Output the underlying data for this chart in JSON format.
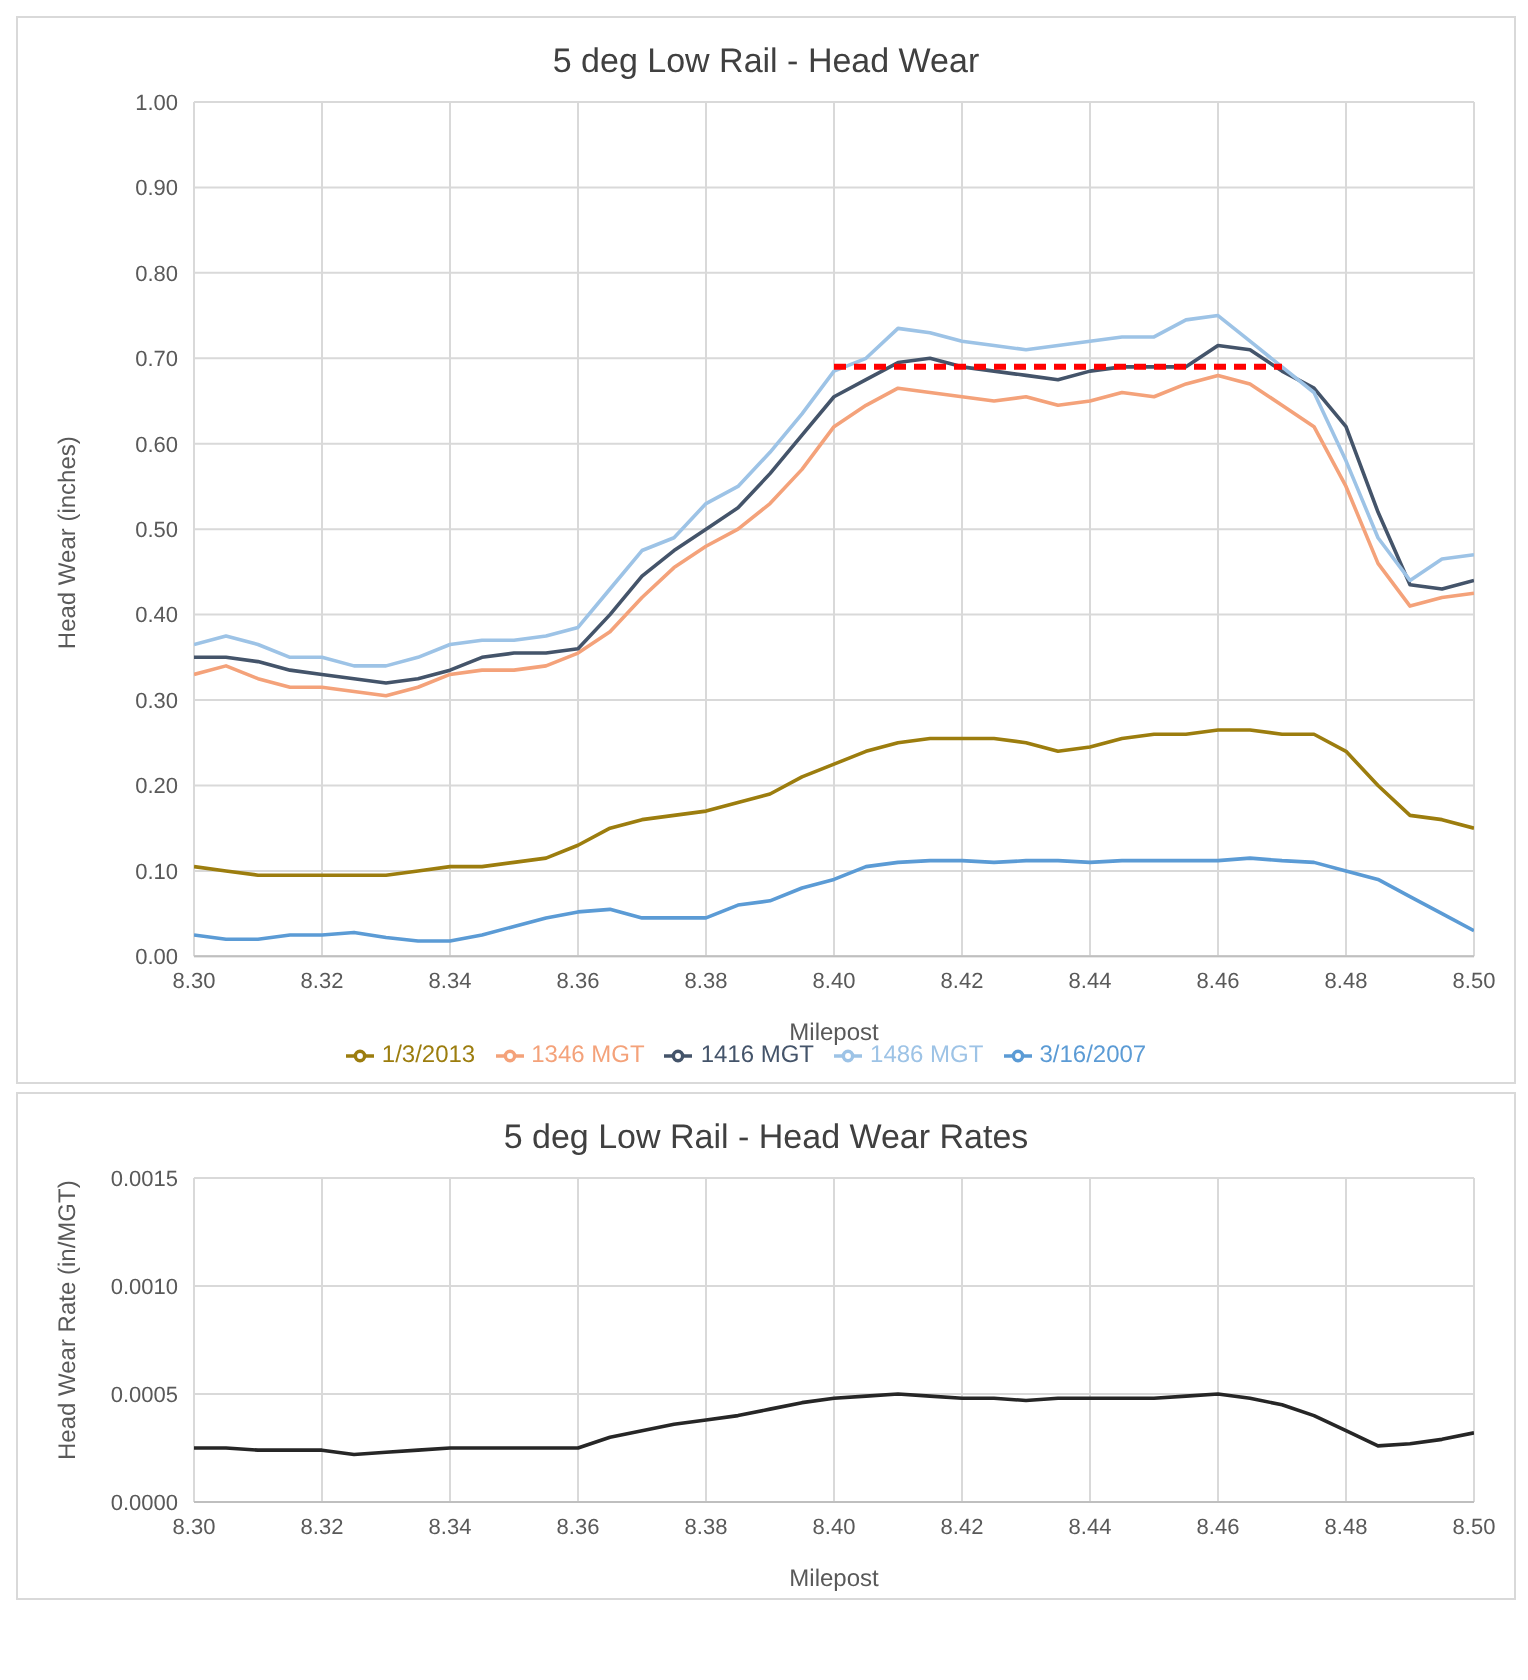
{
  "chart_data": [
    {
      "type": "line",
      "title": "5 deg Low Rail - Head Wear",
      "xlabel": "Milepost",
      "ylabel": "Head Wear (inches)",
      "x": [
        8.3,
        8.305,
        8.31,
        8.315,
        8.32,
        8.325,
        8.33,
        8.335,
        8.34,
        8.345,
        8.35,
        8.355,
        8.36,
        8.365,
        8.37,
        8.375,
        8.38,
        8.385,
        8.39,
        8.395,
        8.4,
        8.405,
        8.41,
        8.415,
        8.42,
        8.425,
        8.43,
        8.435,
        8.44,
        8.445,
        8.45,
        8.455,
        8.46,
        8.465,
        8.47,
        8.475,
        8.48,
        8.485,
        8.49,
        8.495,
        8.5
      ],
      "series": [
        {
          "name": "3/16/2007",
          "color": "#5b9bd5",
          "values": [
            0.025,
            0.02,
            0.02,
            0.025,
            0.025,
            0.028,
            0.022,
            0.018,
            0.018,
            0.025,
            0.035,
            0.045,
            0.052,
            0.055,
            0.045,
            0.045,
            0.045,
            0.06,
            0.065,
            0.08,
            0.09,
            0.105,
            0.11,
            0.112,
            0.112,
            0.11,
            0.112,
            0.112,
            0.11,
            0.112,
            0.112,
            0.112,
            0.112,
            0.115,
            0.112,
            0.11,
            0.1,
            0.09,
            0.07,
            0.05,
            0.03
          ]
        },
        {
          "name": "1/3/2013",
          "color": "#9c7d0e",
          "values": [
            0.105,
            0.1,
            0.095,
            0.095,
            0.095,
            0.095,
            0.095,
            0.1,
            0.105,
            0.105,
            0.11,
            0.115,
            0.13,
            0.15,
            0.16,
            0.165,
            0.17,
            0.18,
            0.19,
            0.21,
            0.225,
            0.24,
            0.25,
            0.255,
            0.255,
            0.255,
            0.25,
            0.24,
            0.245,
            0.255,
            0.26,
            0.26,
            0.265,
            0.265,
            0.26,
            0.26,
            0.24,
            0.2,
            0.165,
            0.16,
            0.15
          ]
        },
        {
          "name": "1346 MGT",
          "color": "#f4a27a",
          "values": [
            0.33,
            0.34,
            0.325,
            0.315,
            0.315,
            0.31,
            0.305,
            0.315,
            0.33,
            0.335,
            0.335,
            0.34,
            0.355,
            0.38,
            0.42,
            0.455,
            0.48,
            0.5,
            0.53,
            0.57,
            0.62,
            0.645,
            0.665,
            0.66,
            0.655,
            0.65,
            0.655,
            0.645,
            0.65,
            0.66,
            0.655,
            0.67,
            0.68,
            0.67,
            0.645,
            0.62,
            0.55,
            0.46,
            0.41,
            0.42,
            0.425
          ]
        },
        {
          "name": "1416 MGT",
          "color": "#44546a",
          "values": [
            0.35,
            0.35,
            0.345,
            0.335,
            0.33,
            0.325,
            0.32,
            0.325,
            0.335,
            0.35,
            0.355,
            0.355,
            0.36,
            0.4,
            0.445,
            0.475,
            0.5,
            0.525,
            0.565,
            0.61,
            0.655,
            0.675,
            0.695,
            0.7,
            0.69,
            0.685,
            0.68,
            0.675,
            0.685,
            0.69,
            0.69,
            0.69,
            0.715,
            0.71,
            0.685,
            0.665,
            0.62,
            0.52,
            0.435,
            0.43,
            0.44
          ]
        },
        {
          "name": "1486 MGT",
          "color": "#9dc3e6",
          "values": [
            0.365,
            0.375,
            0.365,
            0.35,
            0.35,
            0.34,
            0.34,
            0.35,
            0.365,
            0.37,
            0.37,
            0.375,
            0.385,
            0.43,
            0.475,
            0.49,
            0.53,
            0.55,
            0.59,
            0.635,
            0.685,
            0.7,
            0.735,
            0.73,
            0.72,
            0.715,
            0.71,
            0.715,
            0.72,
            0.725,
            0.725,
            0.745,
            0.75,
            0.72,
            0.69,
            0.66,
            0.58,
            0.49,
            0.44,
            0.465,
            0.47
          ]
        },
        {
          "color": "#ff0000",
          "line_style": "dashed",
          "x": [
            8.4,
            8.47
          ],
          "values": [
            0.69,
            0.69
          ]
        }
      ],
      "xlim": [
        8.3,
        8.5
      ],
      "xticks": [
        {
          "value": 8.3,
          "label": "8.30"
        },
        {
          "value": 8.32,
          "label": "8.32"
        },
        {
          "value": 8.34,
          "label": "8.34"
        },
        {
          "value": 8.36,
          "label": "8.36"
        },
        {
          "value": 8.38,
          "label": "8.38"
        },
        {
          "value": 8.4,
          "label": "8.40"
        },
        {
          "value": 8.42,
          "label": "8.42"
        },
        {
          "value": 8.44,
          "label": "8.44"
        },
        {
          "value": 8.46,
          "label": "8.46"
        },
        {
          "value": 8.48,
          "label": "8.48"
        },
        {
          "value": 8.5,
          "label": "8.50"
        }
      ],
      "ylim": [
        0,
        1
      ],
      "yticks": [
        {
          "value": 0,
          "label": "0.00"
        },
        {
          "value": 0.1,
          "label": "0.10"
        },
        {
          "value": 0.2,
          "label": "0.20"
        },
        {
          "value": 0.3,
          "label": "0.30"
        },
        {
          "value": 0.4,
          "label": "0.40"
        },
        {
          "value": 0.5,
          "label": "0.50"
        },
        {
          "value": 0.6,
          "label": "0.60"
        },
        {
          "value": 0.7,
          "label": "0.70"
        },
        {
          "value": 0.8,
          "label": "0.80"
        },
        {
          "value": 0.9,
          "label": "0.90"
        },
        {
          "value": 1,
          "label": "1.00"
        }
      ],
      "grid": true,
      "legend": "bottom",
      "marker": "none",
      "line_style": "solid"
    },
    {
      "type": "line",
      "title": "5 deg Low Rail - Head Wear Rates",
      "xlabel": "Milepost",
      "ylabel": "Head Wear Rate (in/MGT)",
      "x": [
        8.3,
        8.305,
        8.31,
        8.315,
        8.32,
        8.325,
        8.33,
        8.335,
        8.34,
        8.345,
        8.35,
        8.355,
        8.36,
        8.365,
        8.37,
        8.375,
        8.38,
        8.385,
        8.39,
        8.395,
        8.4,
        8.405,
        8.41,
        8.415,
        8.42,
        8.425,
        8.43,
        8.435,
        8.44,
        8.445,
        8.45,
        8.455,
        8.46,
        8.465,
        8.47,
        8.475,
        8.48,
        8.485,
        8.49,
        8.495,
        8.5
      ],
      "series": [
        {
          "color": "#262626",
          "values": [
            0.00025,
            0.00025,
            0.00024,
            0.00024,
            0.00024,
            0.00022,
            0.00023,
            0.00024,
            0.00025,
            0.00025,
            0.00025,
            0.00025,
            0.00025,
            0.0003,
            0.00033,
            0.00036,
            0.00038,
            0.0004,
            0.00043,
            0.00046,
            0.00048,
            0.00049,
            0.0005,
            0.00049,
            0.00048,
            0.00048,
            0.00047,
            0.00048,
            0.00048,
            0.00048,
            0.00048,
            0.00049,
            0.0005,
            0.00048,
            0.00045,
            0.0004,
            0.00033,
            0.00026,
            0.00027,
            0.00029,
            0.00032
          ]
        }
      ],
      "xlim": [
        8.3,
        8.5
      ],
      "xticks": [
        {
          "value": 8.3,
          "label": "8.30"
        },
        {
          "value": 8.32,
          "label": "8.32"
        },
        {
          "value": 8.34,
          "label": "8.34"
        },
        {
          "value": 8.36,
          "label": "8.36"
        },
        {
          "value": 8.38,
          "label": "8.38"
        },
        {
          "value": 8.4,
          "label": "8.40"
        },
        {
          "value": 8.42,
          "label": "8.42"
        },
        {
          "value": 8.44,
          "label": "8.44"
        },
        {
          "value": 8.46,
          "label": "8.46"
        },
        {
          "value": 8.48,
          "label": "8.48"
        },
        {
          "value": 8.5,
          "label": "8.50"
        }
      ],
      "ylim": [
        0,
        0.0015
      ],
      "yticks": [
        {
          "value": 0,
          "label": "0.0000"
        },
        {
          "value": 0.0005,
          "label": "0.0005"
        },
        {
          "value": 0.001,
          "label": "0.0010"
        },
        {
          "value": 0.0015,
          "label": "0.0015"
        }
      ],
      "grid": true,
      "legend": false,
      "marker": "none",
      "line_style": "solid"
    }
  ]
}
